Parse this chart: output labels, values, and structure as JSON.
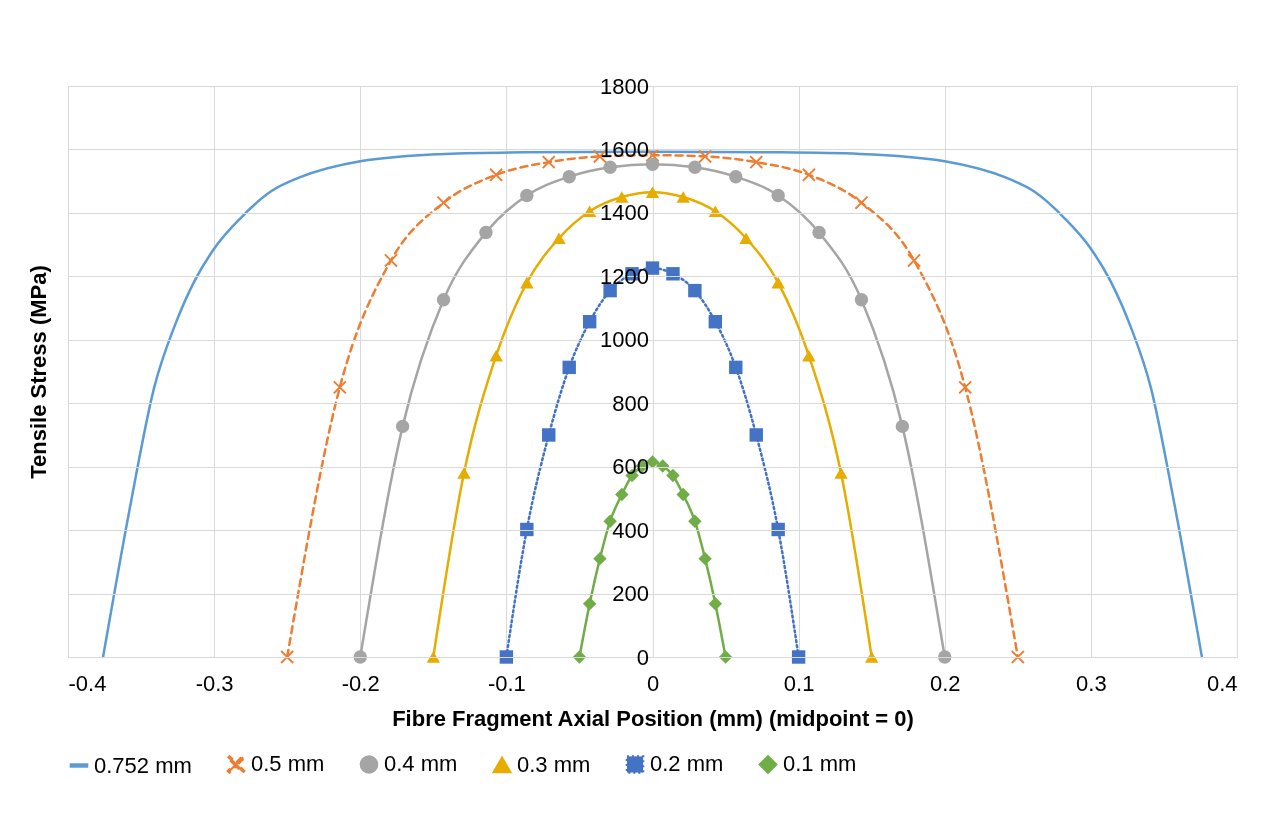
{
  "chart_data": {
    "type": "line",
    "xlabel": "Fibre Fragment Axial Position (mm) (midpoint = 0)",
    "ylabel": "Tensile Stress (MPa)",
    "xlim": [
      -0.4,
      0.4
    ],
    "xticks": [
      -0.4,
      -0.3,
      -0.2,
      -0.1,
      0,
      0.1,
      0.2,
      0.3,
      0.4
    ],
    "ylim": [
      0,
      1800
    ],
    "yticks": [
      0,
      200,
      400,
      600,
      800,
      1000,
      1200,
      1400,
      1600,
      1800
    ],
    "grid": true,
    "legend": "bottom",
    "series": [
      {
        "name": "0.752 mm",
        "color": "#5b9bd5",
        "marker": "none",
        "line_style": "solid",
        "x": [
          -0.376,
          -0.357,
          -0.341,
          -0.327,
          -0.313,
          -0.3,
          -0.282,
          -0.261,
          -0.242,
          -0.2,
          -0.142,
          -0.088,
          0,
          0.088,
          0.142,
          0.2,
          0.242,
          0.261,
          0.282,
          0.3,
          0.313,
          0.327,
          0.341,
          0.357,
          0.376
        ],
        "values": [
          0,
          486,
          850,
          1044,
          1189,
          1287,
          1383,
          1468,
          1511,
          1563,
          1586,
          1591,
          1593,
          1591,
          1586,
          1563,
          1511,
          1468,
          1383,
          1287,
          1189,
          1044,
          850,
          486,
          0
        ]
      },
      {
        "name": "0.5 mm",
        "color": "#ed7d31",
        "marker": "cross",
        "line_style": "dashed",
        "x": [
          -0.25,
          -0.214,
          -0.179,
          -0.143,
          -0.107,
          -0.071,
          -0.036,
          0,
          0.036,
          0.071,
          0.107,
          0.143,
          0.179,
          0.214,
          0.25
        ],
        "values": [
          0,
          850,
          1250,
          1432,
          1520,
          1560,
          1578,
          1582,
          1578,
          1560,
          1520,
          1432,
          1250,
          850,
          0
        ]
      },
      {
        "name": "0.4 mm",
        "color": "#a5a5a5",
        "marker": "circle",
        "line_style": "solid",
        "x": [
          -0.2,
          -0.171,
          -0.143,
          -0.114,
          -0.086,
          -0.057,
          -0.029,
          0,
          0.029,
          0.057,
          0.086,
          0.114,
          0.143,
          0.171,
          0.2
        ],
        "values": [
          0,
          727,
          1126,
          1338,
          1455,
          1514,
          1544,
          1553,
          1544,
          1514,
          1455,
          1338,
          1126,
          727,
          0
        ]
      },
      {
        "name": "0.3 mm",
        "color": "#e6ad00",
        "marker": "triangle",
        "line_style": "solid",
        "x": [
          -0.15,
          -0.129,
          -0.107,
          -0.086,
          -0.064,
          -0.043,
          -0.021,
          0,
          0.021,
          0.043,
          0.064,
          0.086,
          0.107,
          0.129,
          0.15
        ],
        "values": [
          0,
          580,
          950,
          1180,
          1320,
          1405,
          1450,
          1465,
          1450,
          1405,
          1320,
          1180,
          950,
          580,
          0
        ]
      },
      {
        "name": "0.2 mm",
        "color": "#4472c4",
        "marker": "square",
        "line_style": "dotted",
        "x": [
          -0.1,
          -0.086,
          -0.071,
          -0.057,
          -0.043,
          -0.029,
          -0.014,
          0,
          0.014,
          0.029,
          0.043,
          0.057,
          0.071,
          0.086,
          0.1
        ],
        "values": [
          0,
          402,
          700,
          913,
          1057,
          1155,
          1208,
          1226,
          1208,
          1155,
          1057,
          913,
          700,
          402,
          0
        ]
      },
      {
        "name": "0.1 mm",
        "color": "#70ad47",
        "marker": "diamond",
        "line_style": "solid",
        "x": [
          -0.05,
          -0.043,
          -0.036,
          -0.029,
          -0.021,
          -0.014,
          -0.007,
          0,
          0.007,
          0.014,
          0.021,
          0.029,
          0.036,
          0.043,
          0.05
        ],
        "values": [
          0,
          168,
          310,
          428,
          512,
          572,
          602,
          615,
          602,
          572,
          512,
          428,
          310,
          168,
          0
        ]
      }
    ]
  }
}
